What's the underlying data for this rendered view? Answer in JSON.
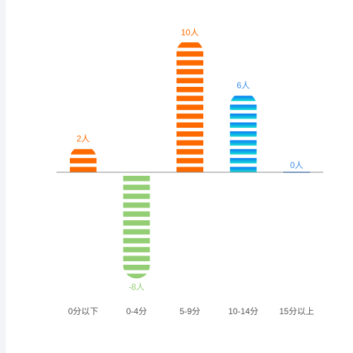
{
  "chart_data": {
    "type": "bar",
    "title": "",
    "xlabel": "",
    "ylabel": "",
    "categories": [
      "0分以下",
      "0-4分",
      "5-9分",
      "10-14分",
      "15分以上"
    ],
    "values": [
      2,
      -8,
      10,
      6,
      0
    ],
    "data_labels": [
      "2人",
      "-8人",
      "10人",
      "6人",
      "0人"
    ],
    "ylim": [
      -8,
      10
    ],
    "grid": false,
    "legend": "none",
    "colors": {
      "orange": "#ff6a00",
      "green": "#93ce74",
      "blue_top": "#0a7cf5",
      "cyan_bottom": "#15dcd6",
      "baseline": "#888888",
      "zero_bar": "#6aa9f0",
      "label_blue": "#3d8ee8"
    }
  }
}
